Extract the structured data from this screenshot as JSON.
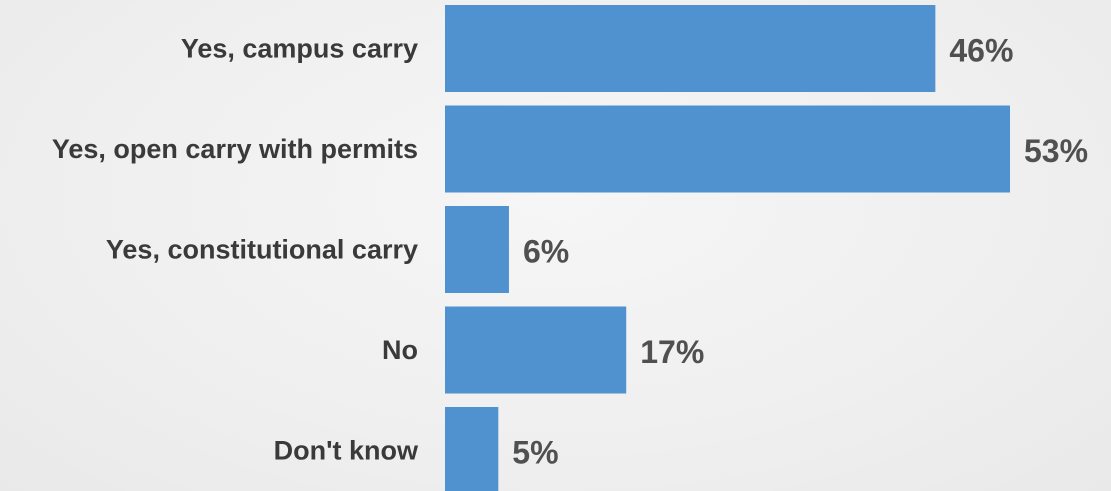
{
  "chart_data": {
    "type": "bar",
    "orientation": "horizontal",
    "categories": [
      "Yes, campus carry",
      "Yes, open carry with permits",
      "Yes, constitutional carry",
      "No",
      "Don't know"
    ],
    "values": [
      46,
      53,
      6,
      17,
      5
    ],
    "value_labels": [
      "46%",
      "53%",
      "6%",
      "17%",
      "5%"
    ],
    "bar_color": "#5091cf",
    "grid": false,
    "legend": "none"
  }
}
